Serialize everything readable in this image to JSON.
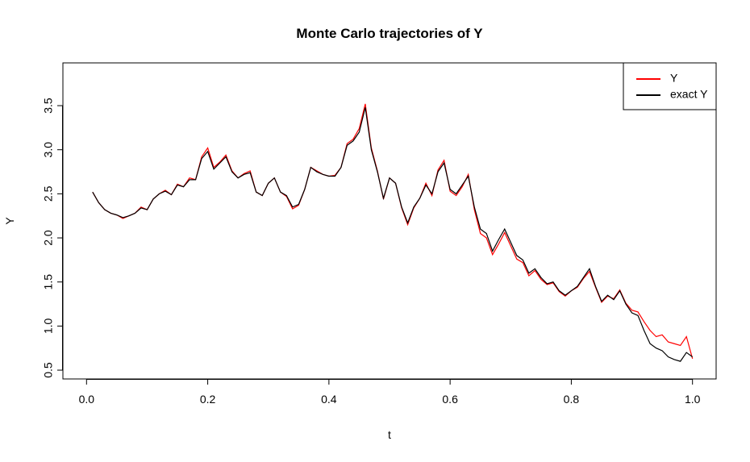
{
  "chart_data": {
    "type": "line",
    "title": "Monte Carlo trajectories of Y",
    "x_label": "t",
    "y_label": "Y",
    "x": [
      0.01,
      0.02,
      0.03,
      0.04,
      0.05,
      0.06,
      0.07,
      0.08,
      0.09,
      0.1,
      0.11,
      0.12,
      0.13,
      0.14,
      0.15,
      0.16,
      0.17,
      0.18,
      0.19,
      0.2,
      0.21,
      0.22,
      0.23,
      0.24,
      0.25,
      0.26,
      0.27,
      0.28,
      0.29,
      0.3,
      0.31,
      0.32,
      0.33,
      0.34,
      0.35,
      0.36,
      0.37,
      0.38,
      0.39,
      0.4,
      0.41,
      0.42,
      0.43,
      0.44,
      0.45,
      0.46,
      0.47,
      0.48,
      0.49,
      0.5,
      0.51,
      0.52,
      0.53,
      0.54,
      0.55,
      0.56,
      0.57,
      0.58,
      0.59,
      0.6,
      0.61,
      0.62,
      0.63,
      0.64,
      0.65,
      0.66,
      0.67,
      0.68,
      0.69,
      0.7,
      0.71,
      0.72,
      0.73,
      0.74,
      0.75,
      0.76,
      0.77,
      0.78,
      0.79,
      0.8,
      0.81,
      0.82,
      0.83,
      0.84,
      0.85,
      0.86,
      0.87,
      0.88,
      0.89,
      0.9,
      0.91,
      0.92,
      0.93,
      0.94,
      0.95,
      0.96,
      0.97,
      0.98,
      0.99,
      1.0
    ],
    "series": [
      {
        "name": "Y",
        "color": "#ff0000",
        "values": [
          2.52,
          2.4,
          2.32,
          2.28,
          2.26,
          2.22,
          2.25,
          2.28,
          2.35,
          2.32,
          2.44,
          2.5,
          2.54,
          2.49,
          2.61,
          2.58,
          2.68,
          2.66,
          2.92,
          3.02,
          2.8,
          2.86,
          2.94,
          2.76,
          2.68,
          2.73,
          2.76,
          2.52,
          2.48,
          2.62,
          2.68,
          2.52,
          2.47,
          2.33,
          2.37,
          2.55,
          2.8,
          2.76,
          2.72,
          2.7,
          2.71,
          2.8,
          3.07,
          3.12,
          3.24,
          3.52,
          3.02,
          2.76,
          2.44,
          2.68,
          2.62,
          2.34,
          2.15,
          2.34,
          2.45,
          2.62,
          2.48,
          2.77,
          2.88,
          2.53,
          2.48,
          2.58,
          2.72,
          2.32,
          2.05,
          2.0,
          1.81,
          1.93,
          2.06,
          1.91,
          1.76,
          1.72,
          1.57,
          1.63,
          1.53,
          1.47,
          1.49,
          1.39,
          1.34,
          1.4,
          1.44,
          1.54,
          1.62,
          1.44,
          1.27,
          1.34,
          1.31,
          1.41,
          1.26,
          1.18,
          1.16,
          1.05,
          0.95,
          0.88,
          0.9,
          0.82,
          0.8,
          0.78,
          0.88,
          0.63
        ]
      },
      {
        "name": "exact Y",
        "color": "#000000",
        "values": [
          2.52,
          2.4,
          2.32,
          2.28,
          2.26,
          2.23,
          2.25,
          2.28,
          2.34,
          2.32,
          2.44,
          2.5,
          2.53,
          2.49,
          2.6,
          2.58,
          2.66,
          2.66,
          2.9,
          2.98,
          2.78,
          2.85,
          2.92,
          2.75,
          2.68,
          2.72,
          2.74,
          2.52,
          2.48,
          2.62,
          2.68,
          2.52,
          2.48,
          2.35,
          2.38,
          2.55,
          2.8,
          2.75,
          2.72,
          2.7,
          2.7,
          2.8,
          3.05,
          3.1,
          3.2,
          3.48,
          3.0,
          2.75,
          2.45,
          2.68,
          2.62,
          2.35,
          2.17,
          2.35,
          2.45,
          2.6,
          2.5,
          2.75,
          2.85,
          2.55,
          2.5,
          2.6,
          2.7,
          2.35,
          2.1,
          2.05,
          1.85,
          1.98,
          2.1,
          1.95,
          1.8,
          1.75,
          1.6,
          1.65,
          1.55,
          1.48,
          1.5,
          1.4,
          1.35,
          1.4,
          1.45,
          1.55,
          1.65,
          1.45,
          1.28,
          1.35,
          1.3,
          1.4,
          1.25,
          1.15,
          1.12,
          0.95,
          0.8,
          0.75,
          0.72,
          0.65,
          0.62,
          0.6,
          0.7,
          0.65
        ]
      }
    ],
    "xlim": [
      -0.039,
      1.039
    ],
    "ylim": [
      0.4,
      3.985
    ],
    "xticks": [
      {
        "value": 0.0,
        "label": "0.0"
      },
      0.2,
      0.4,
      0.6,
      0.8,
      {
        "value": 1.0,
        "label": "1.0"
      }
    ],
    "yticks": [
      0.5,
      {
        "value": 1.0,
        "label": "1.0"
      },
      1.5,
      {
        "value": 2.0,
        "label": "2.0"
      },
      2.5,
      {
        "value": 3.0,
        "label": "3.0"
      },
      3.5
    ],
    "legend": "top-right"
  }
}
